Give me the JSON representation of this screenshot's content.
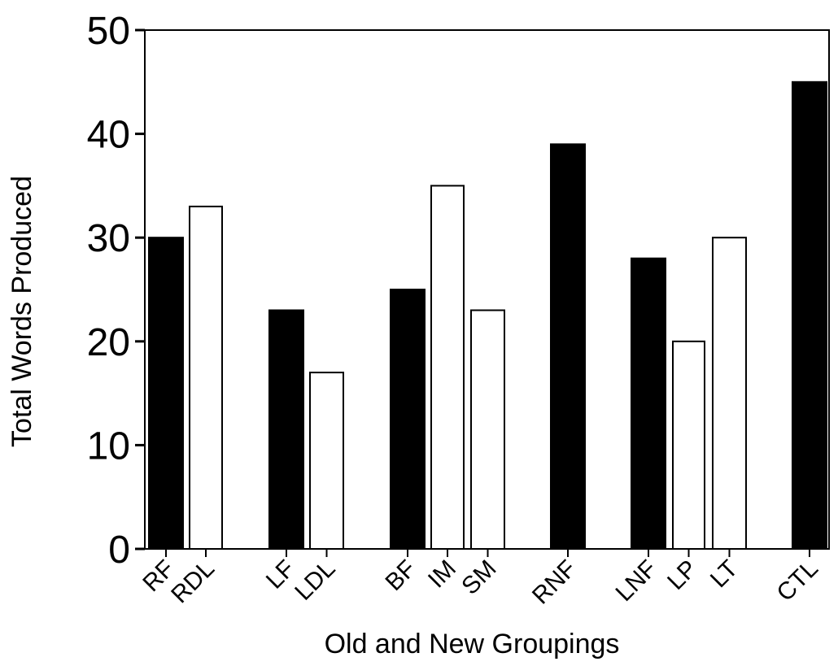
{
  "chart_data": {
    "type": "bar",
    "title": "",
    "xlabel": "Old and New Groupings",
    "ylabel": "Total Words Produced",
    "ylim": [
      0,
      50
    ],
    "yticks": [
      0,
      10,
      20,
      30,
      40,
      50
    ],
    "grid": false,
    "legend": "none",
    "colors": {
      "old": "#000000",
      "new": "#ffffff",
      "outline": "#000000"
    },
    "categories": [
      "RF",
      "RDL",
      "LF",
      "LDL",
      "BF",
      "IM",
      "SM",
      "RNF",
      "LNF",
      "LP",
      "LT",
      "CTL"
    ],
    "values": [
      30,
      33,
      23,
      17,
      25,
      35,
      23,
      39,
      28,
      20,
      30,
      45
    ],
    "grouping": [
      "old",
      "new",
      "old",
      "new",
      "old",
      "new",
      "new",
      "old",
      "old",
      "new",
      "new",
      "old"
    ]
  }
}
